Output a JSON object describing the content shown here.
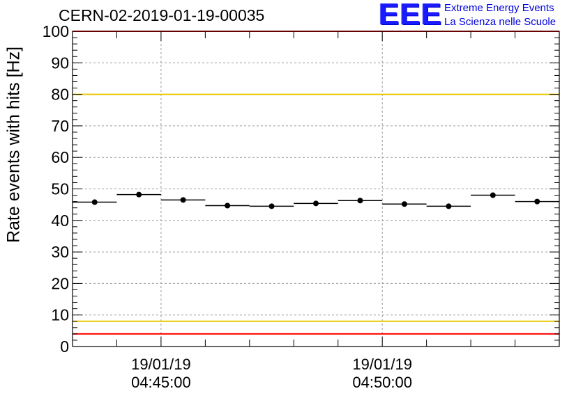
{
  "title": "CERN-02-2019-01-19-00035",
  "logo": {
    "mark": "EEE",
    "line1": "Extreme Energy Events",
    "line2": "La Scienza nelle Scuole"
  },
  "colors": {
    "limit_red": "#ff0000",
    "limit_yellow": "#e8c800",
    "logo_blue": "#1a1aff",
    "markers": "#000000"
  },
  "chart_data": {
    "type": "scatter",
    "title": "CERN-02-2019-01-19-00035",
    "xlabel": "",
    "ylabel": "Rate events with hits [Hz]",
    "ylim": [
      0,
      100
    ],
    "yticks": [
      0,
      10,
      20,
      30,
      40,
      50,
      60,
      70,
      80,
      90,
      100
    ],
    "xlim_seconds": [
      0,
      660
    ],
    "xtick_labels": [
      {
        "date": "19/01/19",
        "time": "04:45:00",
        "x": 120
      },
      {
        "date": "19/01/19",
        "time": "04:50:00",
        "x": 420
      }
    ],
    "grid": true,
    "bin_width_seconds": 60,
    "series": [
      {
        "x": [
          30,
          90,
          150,
          210,
          270,
          330,
          390,
          450,
          510,
          570,
          630
        ],
        "values": [
          45.8,
          48.2,
          46.5,
          44.7,
          44.5,
          45.4,
          46.3,
          45.2,
          44.5,
          48.0,
          46.0
        ]
      }
    ],
    "reference_lines": [
      {
        "y": 100,
        "color": "red"
      },
      {
        "y": 80,
        "color": "yellow"
      },
      {
        "y": 8,
        "color": "yellow"
      },
      {
        "y": 4,
        "color": "red"
      }
    ]
  }
}
